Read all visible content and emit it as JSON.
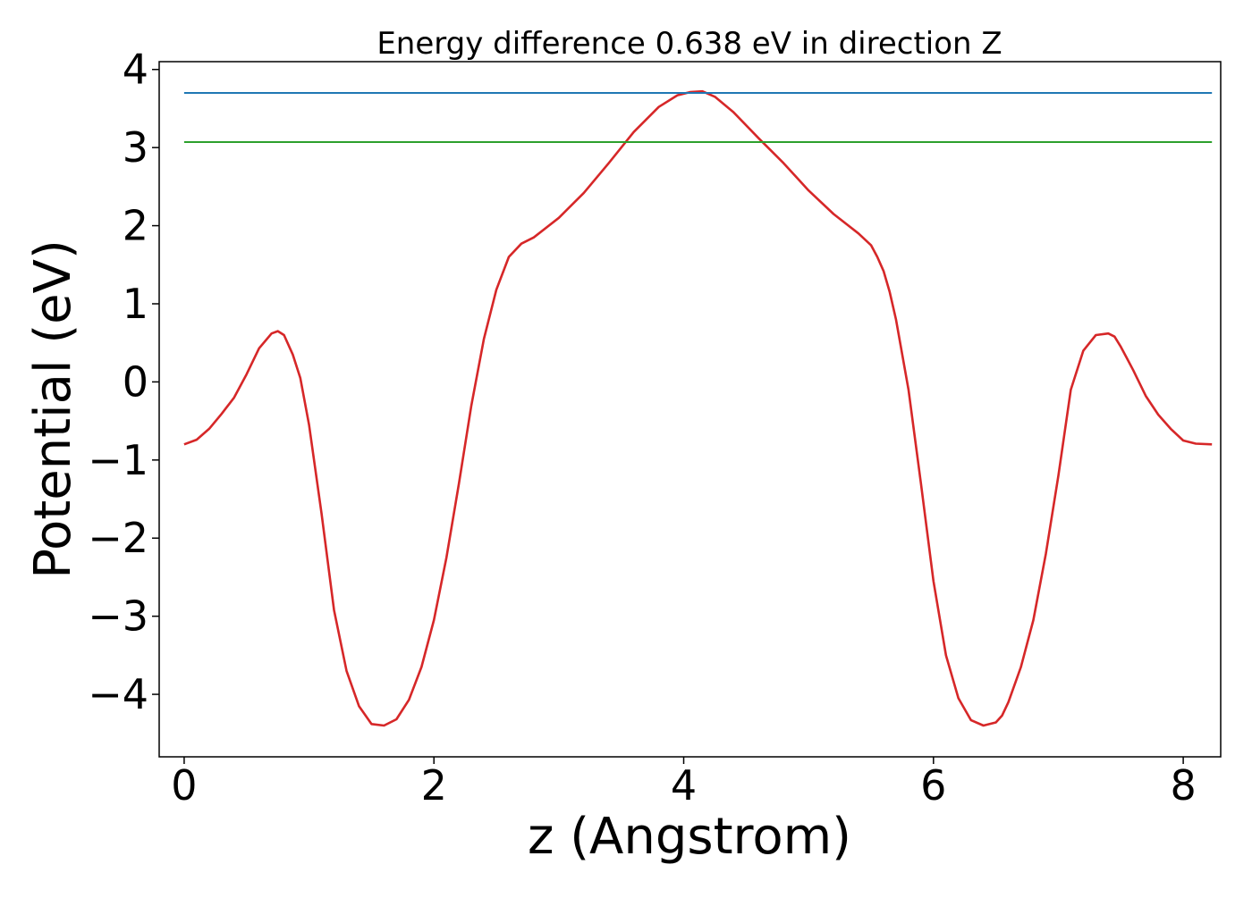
{
  "chart_data": {
    "type": "line",
    "title": "Energy difference 0.638 eV in direction Z",
    "xlabel": "z (Angstrom)",
    "ylabel": "Potential (eV)",
    "xlim": [
      -0.2,
      8.3
    ],
    "ylim": [
      -4.8,
      4.1
    ],
    "xticks": [
      0,
      2,
      4,
      6,
      8
    ],
    "xtick_labels": [
      "0",
      "2",
      "4",
      "6",
      "8"
    ],
    "yticks": [
      -4,
      -3,
      -2,
      -1,
      0,
      1,
      2,
      3,
      4
    ],
    "ytick_labels": [
      "−4",
      "−3",
      "−2",
      "−1",
      "0",
      "1",
      "2",
      "3",
      "4"
    ],
    "grid": false,
    "series": [
      {
        "color": "#d62728",
        "x": [
          0.0,
          0.1,
          0.2,
          0.3,
          0.4,
          0.5,
          0.6,
          0.7,
          0.75,
          0.8,
          0.87,
          0.93,
          1.0,
          1.1,
          1.2,
          1.3,
          1.4,
          1.5,
          1.6,
          1.7,
          1.8,
          1.9,
          2.0,
          2.1,
          2.2,
          2.3,
          2.4,
          2.5,
          2.6,
          2.7,
          2.8,
          3.0,
          3.2,
          3.4,
          3.6,
          3.8,
          3.95,
          4.05,
          4.15,
          4.25,
          4.4,
          4.6,
          4.8,
          5.0,
          5.2,
          5.4,
          5.5,
          5.55,
          5.6,
          5.65,
          5.7,
          5.8,
          5.9,
          6.0,
          6.1,
          6.2,
          6.3,
          6.4,
          6.5,
          6.55,
          6.6,
          6.7,
          6.8,
          6.9,
          7.0,
          7.1,
          7.2,
          7.3,
          7.4,
          7.45,
          7.5,
          7.55,
          7.6,
          7.7,
          7.8,
          7.9,
          8.0,
          8.1,
          8.23
        ],
        "y": [
          -0.8,
          -0.74,
          -0.6,
          -0.41,
          -0.2,
          0.1,
          0.43,
          0.62,
          0.65,
          0.6,
          0.35,
          0.05,
          -0.55,
          -1.68,
          -2.92,
          -3.7,
          -4.15,
          -4.38,
          -4.4,
          -4.32,
          -4.07,
          -3.65,
          -3.05,
          -2.25,
          -1.3,
          -0.3,
          0.55,
          1.18,
          1.6,
          1.77,
          1.85,
          2.1,
          2.42,
          2.8,
          3.2,
          3.52,
          3.67,
          3.71,
          3.72,
          3.65,
          3.45,
          3.12,
          2.8,
          2.45,
          2.15,
          1.9,
          1.75,
          1.6,
          1.42,
          1.15,
          0.8,
          -0.1,
          -1.3,
          -2.55,
          -3.5,
          -4.05,
          -4.33,
          -4.4,
          -4.36,
          -4.27,
          -4.1,
          -3.65,
          -3.05,
          -2.2,
          -1.2,
          -0.1,
          0.4,
          0.6,
          0.62,
          0.58,
          0.45,
          0.3,
          0.15,
          -0.18,
          -0.42,
          -0.6,
          -0.75,
          -0.79,
          -0.8
        ]
      },
      {
        "color": "#1f77b4",
        "x": [
          0.0,
          8.23
        ],
        "y": [
          3.7,
          3.7
        ]
      },
      {
        "color": "#2ca02c",
        "x": [
          0.0,
          8.23
        ],
        "y": [
          3.07,
          3.07
        ]
      }
    ]
  }
}
